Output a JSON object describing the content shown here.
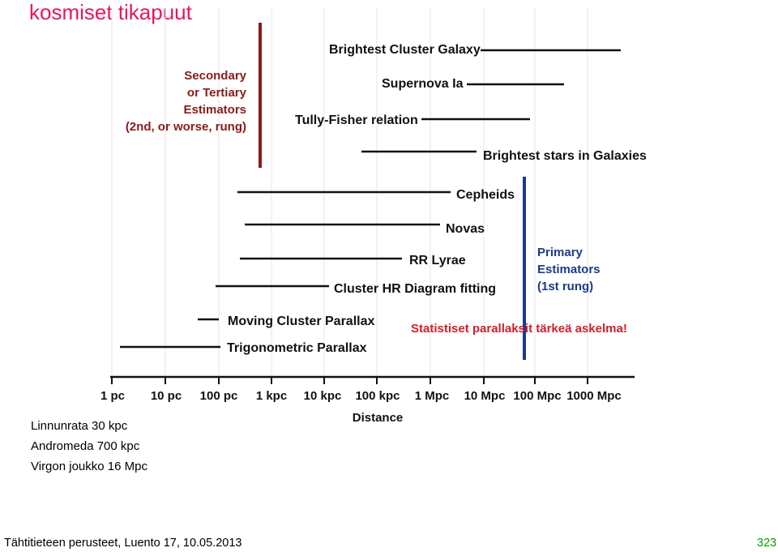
{
  "slide": {
    "title": "kosmiset tikapuut",
    "footer": "Tähtitieteen perusteet, Luento 17, 10.05.2013",
    "page_number": "323"
  },
  "notes": {
    "lines": [
      "Linnunrata 30 kpc",
      "Andromeda 700 kpc",
      "Virgon joukko 16 Mpc"
    ]
  },
  "highlight_note": "Statistiset parallaksit tärkeä askelma!",
  "colors": {
    "title": "#e8175d",
    "secondary": "#8b1a1a",
    "primary": "#1a3a8a",
    "note": "#d21f2a",
    "page_number": "#00a000"
  },
  "diagram": {
    "secondary_label": [
      "Secondary",
      "or Tertiary",
      "Estimators",
      "(2nd, or worse, rung)"
    ],
    "primary_label": [
      "Primary",
      "Estimators",
      "(1st rung)"
    ],
    "axis": {
      "title": "Distance",
      "ticks": [
        "1 pc",
        "10 pc",
        "100 pc",
        "1 kpc",
        "10 kpc",
        "100 kpc",
        "1 Mpc",
        "10 Mpc",
        "100 Mpc",
        "1000 Mpc"
      ]
    },
    "methods": [
      "Brightest Cluster Galaxy",
      "Supernova Ia",
      "Tully-Fisher relation",
      "Brightest stars in Galaxies",
      "Cepheids",
      "Novas",
      "RR Lyrae",
      "Cluster HR Diagram fitting",
      "Moving Cluster Parallax",
      "Trigonometric Parallax"
    ]
  }
}
